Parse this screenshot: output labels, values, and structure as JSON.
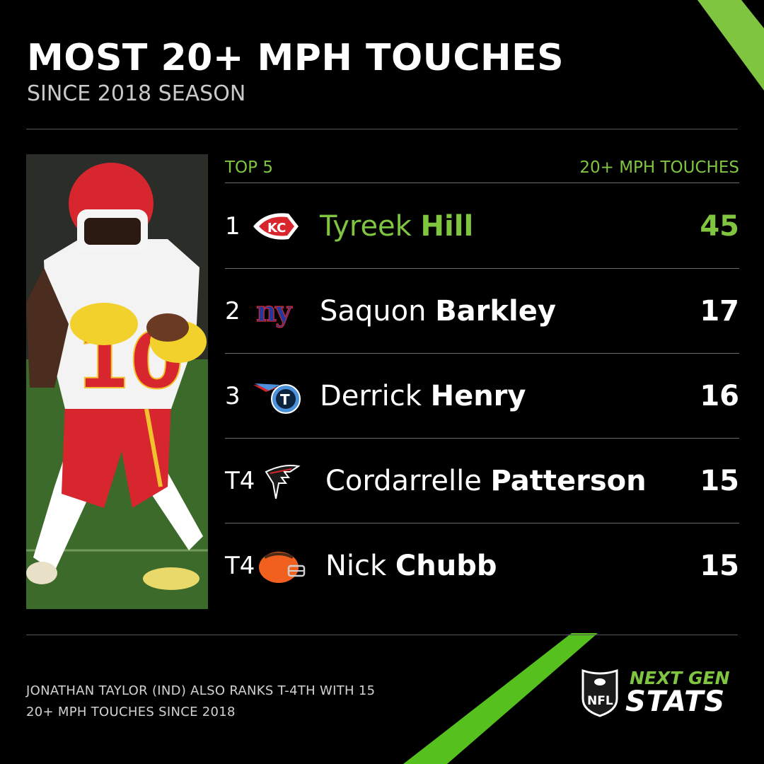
{
  "colors": {
    "background": "#000000",
    "accent_green": "#7fc540",
    "text": "#ffffff"
  },
  "header": {
    "title": "MOST 20+ MPH TOUCHES",
    "subtitle": "SINCE 2018 SEASON"
  },
  "table": {
    "left_header": "TOP 5",
    "right_header": "20+ MPH TOUCHES"
  },
  "photo": {
    "description_icon": "player-photo",
    "jersey_number": "10"
  },
  "chart_data": {
    "type": "table",
    "title": "MOST 20+ MPH TOUCHES",
    "subtitle": "SINCE 2018 SEASON",
    "columns": [
      "TOP 5",
      "20+ MPH TOUCHES"
    ],
    "rows": [
      {
        "rank": "1",
        "first": "Tyreek",
        "last": "Hill",
        "team_icon": "chiefs-logo-icon",
        "value": "45",
        "highlight": true
      },
      {
        "rank": "2",
        "first": "Saquon",
        "last": "Barkley",
        "team_icon": "giants-logo-icon",
        "value": "17"
      },
      {
        "rank": "3",
        "first": "Derrick",
        "last": "Henry",
        "team_icon": "titans-logo-icon",
        "value": "16"
      },
      {
        "rank": "T4",
        "first": "Cordarrelle",
        "last": "Patterson",
        "team_icon": "falcons-logo-icon",
        "value": "15"
      },
      {
        "rank": "T4",
        "first": "Nick",
        "last": "Chubb",
        "team_icon": "browns-logo-icon",
        "value": "15"
      }
    ]
  },
  "footer": {
    "note_line1": "JONATHAN TAYLOR (IND) ALSO RANKS T-4TH WITH 15",
    "note_line2": "20+ MPH TOUCHES SINCE 2018",
    "brand_line1": "NEXT GEN",
    "brand_line2": "STATS",
    "brand_icon": "nfl-shield-icon",
    "nfl_text": "NFL"
  }
}
